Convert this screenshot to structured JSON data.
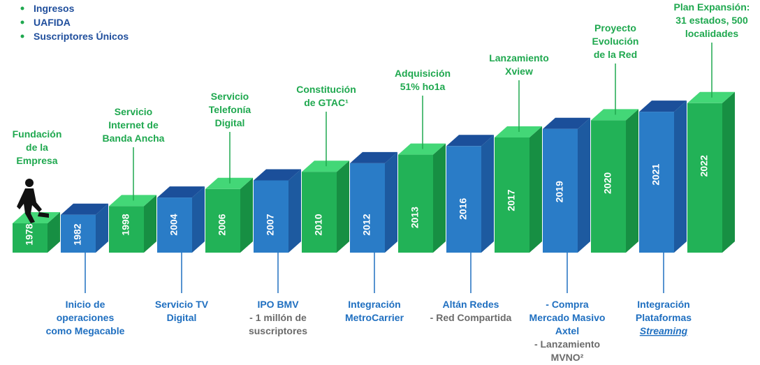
{
  "legend": [
    "Ingresos",
    "UAFIDA",
    "Suscriptores Únicos"
  ],
  "milestones": [
    {
      "year": "1978",
      "label": [
        "Fundación",
        "de la",
        "Empresa"
      ]
    },
    {
      "year": "1982",
      "label": [
        "Inicio de",
        "operaciones",
        "como Megacable"
      ]
    },
    {
      "year": "1998",
      "label": [
        "Servicio",
        "Internet de",
        "Banda Ancha"
      ]
    },
    {
      "year": "2004",
      "label": [
        "Servicio TV",
        "Digital"
      ]
    },
    {
      "year": "2006",
      "label": [
        "Servicio",
        "Telefonía",
        "Digital"
      ]
    },
    {
      "year": "2007",
      "label": [
        "IPO BMV"
      ],
      "note": [
        "- 1 millón de",
        "suscriptores"
      ]
    },
    {
      "year": "2010",
      "label": [
        "Constitución",
        "de GTAC¹"
      ]
    },
    {
      "year": "2012",
      "label": [
        "Integración",
        "MetroCarrier"
      ]
    },
    {
      "year": "2013",
      "label": [
        "Adquisición",
        "51% ho1a"
      ]
    },
    {
      "year": "2016",
      "label": [
        "Altán Redes"
      ],
      "note": [
        "- Red Compartida"
      ]
    },
    {
      "year": "2017",
      "label": [
        "Lanzamiento",
        "Xview"
      ]
    },
    {
      "year": "2019",
      "label": [
        "- Compra",
        "Mercado Masivo",
        "Axtel"
      ],
      "note": [
        "- Lanzamiento",
        "MVNO²"
      ]
    },
    {
      "year": "2020",
      "label": [
        "Proyecto",
        "Evolución",
        "de la Red"
      ]
    },
    {
      "year": "2021",
      "label": [
        "Integración",
        "Plataformas"
      ],
      "emphasis": "Streaming"
    },
    {
      "year": "2022",
      "label": [
        "Plan Expansión:",
        "31 estados, 500",
        "localidades"
      ]
    }
  ]
}
